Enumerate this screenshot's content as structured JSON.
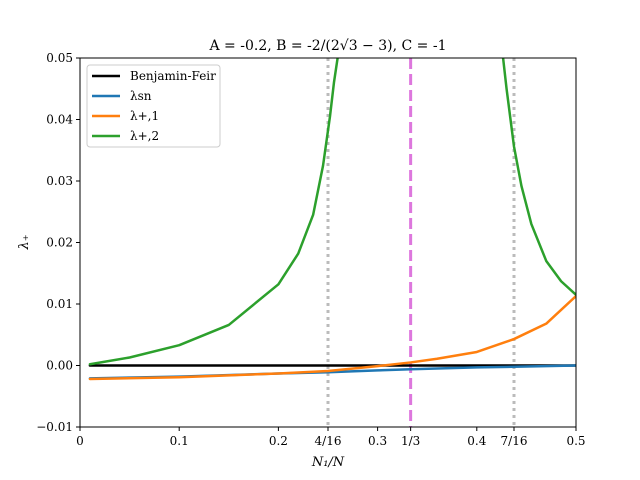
{
  "chart_data": {
    "type": "line",
    "title": "A = -0.2, B = -2/(2√3 − 3), C = -1",
    "xlabel": "N₁/N",
    "ylabel": "λ₊",
    "xlim": [
      0,
      0.5
    ],
    "ylim": [
      -0.01,
      0.05
    ],
    "xticks": [
      {
        "value": 0,
        "label": "0"
      },
      {
        "value": 0.1,
        "label": "0.1"
      },
      {
        "value": 0.2,
        "label": "0.2"
      },
      {
        "value": 0.25,
        "label": "4/16"
      },
      {
        "value": 0.3,
        "label": "0.3"
      },
      {
        "value": 0.3333,
        "label": "1/3"
      },
      {
        "value": 0.4,
        "label": "0.4"
      },
      {
        "value": 0.4375,
        "label": "7/16"
      },
      {
        "value": 0.5,
        "label": "0.5"
      }
    ],
    "yticks": [
      {
        "value": -0.01,
        "label": "−0.01"
      },
      {
        "value": 0.0,
        "label": "0.00"
      },
      {
        "value": 0.01,
        "label": "0.01"
      },
      {
        "value": 0.02,
        "label": "0.02"
      },
      {
        "value": 0.03,
        "label": "0.03"
      },
      {
        "value": 0.04,
        "label": "0.04"
      },
      {
        "value": 0.05,
        "label": "0.05"
      }
    ],
    "grid": false,
    "legend_position": "top-left",
    "vlines": [
      {
        "x": 0.25,
        "style": "dotted",
        "color": "#bbbbbb"
      },
      {
        "x": 0.3333,
        "style": "dashed",
        "color": "#dd77dd"
      },
      {
        "x": 0.4375,
        "style": "dotted",
        "color": "#bbbbbb"
      }
    ],
    "series": [
      {
        "name": "Benjamin-Feir",
        "color": "#000000",
        "points": [
          [
            0.01,
            0.0
          ],
          [
            0.5,
            0.0
          ]
        ]
      },
      {
        "name": "λsn",
        "color": "#1f77b4",
        "points": [
          [
            0.01,
            -0.0021
          ],
          [
            0.1,
            -0.0018
          ],
          [
            0.2,
            -0.0013
          ],
          [
            0.25,
            -0.0011
          ],
          [
            0.3,
            -0.0008
          ],
          [
            0.3333,
            -0.0006
          ],
          [
            0.4,
            -0.0003
          ],
          [
            0.4375,
            -0.0002
          ],
          [
            0.5,
            0.0
          ]
        ]
      },
      {
        "name": "λ+,1",
        "color": "#ff7f0e",
        "points": [
          [
            0.01,
            -0.0022
          ],
          [
            0.1,
            -0.0019
          ],
          [
            0.2,
            -0.0013
          ],
          [
            0.25,
            -0.0009
          ],
          [
            0.3,
            -0.0001
          ],
          [
            0.3333,
            0.0005
          ],
          [
            0.36,
            0.0011
          ],
          [
            0.4,
            0.0022
          ],
          [
            0.4375,
            0.0043
          ],
          [
            0.47,
            0.0068
          ],
          [
            0.5,
            0.0113
          ]
        ]
      },
      {
        "name": "λ+,2",
        "color": "#2ca02c",
        "segments": [
          [
            [
              0.01,
              0.0002
            ],
            [
              0.05,
              0.0013
            ],
            [
              0.1,
              0.0033
            ],
            [
              0.15,
              0.0066
            ],
            [
              0.2,
              0.0132
            ],
            [
              0.22,
              0.0182
            ],
            [
              0.235,
              0.0245
            ],
            [
              0.245,
              0.0325
            ],
            [
              0.252,
              0.0405
            ],
            [
              0.256,
              0.046
            ],
            [
              0.2597,
              0.05
            ]
          ],
          [
            [
              0.4265,
              0.05
            ],
            [
              0.43,
              0.045
            ],
            [
              0.4375,
              0.0356
            ],
            [
              0.445,
              0.0292
            ],
            [
              0.455,
              0.023
            ],
            [
              0.47,
              0.017
            ],
            [
              0.485,
              0.0137
            ],
            [
              0.5,
              0.0115
            ]
          ]
        ]
      }
    ]
  }
}
